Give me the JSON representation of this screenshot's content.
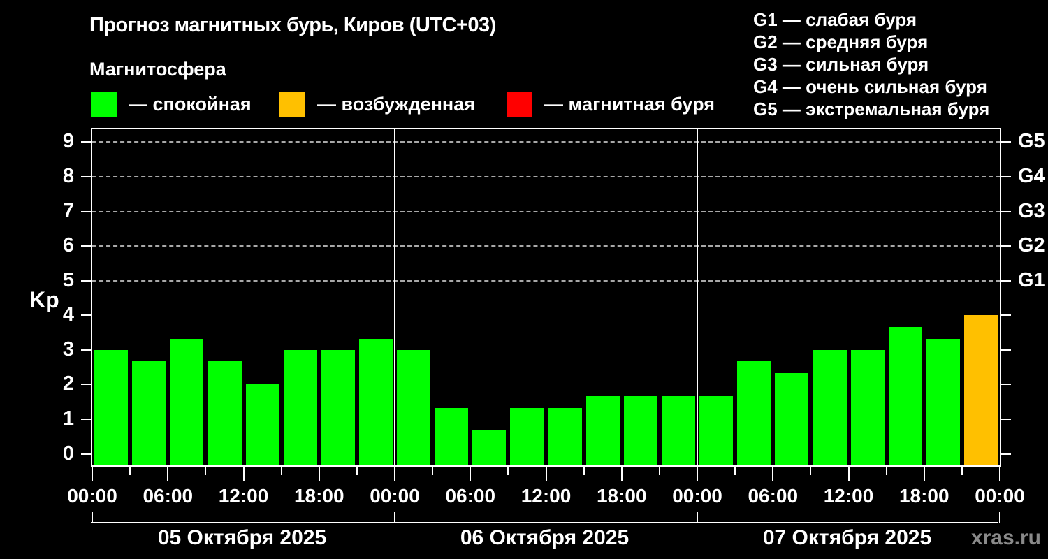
{
  "header": {
    "title": "Прогноз магнитных бурь, Киров (UTC+03)",
    "subtitle": "Магнитосфера"
  },
  "legend": {
    "items": [
      {
        "key": "quiet",
        "label": "— спокойная",
        "color": "#00ff00"
      },
      {
        "key": "excited",
        "label": "— возбужденная",
        "color": "#ffc000"
      },
      {
        "key": "storm",
        "label": "— магнитная буря",
        "color": "#ff0000"
      }
    ]
  },
  "g_legend": {
    "items": [
      {
        "text": "G1 — слабая буря"
      },
      {
        "text": "G2 — средняя буря"
      },
      {
        "text": "G3 — сильная буря"
      },
      {
        "text": "G4 — очень сильная буря"
      },
      {
        "text": "G5 — экстремальная буря"
      }
    ]
  },
  "chart_data": {
    "type": "bar",
    "title": "Прогноз магнитных бурь, Киров (UTC+03)",
    "subtitle": "Магнитосфера",
    "ylabel": "Kp",
    "ylim": [
      -0.33,
      9.37
    ],
    "y_ticks": [
      0,
      1,
      2,
      3,
      4,
      5,
      6,
      7,
      8,
      9
    ],
    "grid_levels": [
      5,
      6,
      7,
      8,
      9
    ],
    "grid_style": "dashed",
    "right_labels": [
      {
        "text": "G1",
        "kp": 5
      },
      {
        "text": "G2",
        "kp": 6
      },
      {
        "text": "G3",
        "kp": 7
      },
      {
        "text": "G4",
        "kp": 8
      },
      {
        "text": "G5",
        "kp": 9
      }
    ],
    "hours_total": 72,
    "bar_interval_hours": 3,
    "x_major_step_hours": 6,
    "x_minor_step_hours": 3,
    "x_tick_labels": [
      "00:00",
      "06:00",
      "12:00",
      "18:00",
      "00:00",
      "06:00",
      "12:00",
      "18:00",
      "00:00",
      "06:00",
      "12:00",
      "18:00",
      "00:00"
    ],
    "days": [
      {
        "date": "05 Октября 2025",
        "values": [
          3.0,
          2.67,
          3.33,
          2.67,
          2.0,
          3.0,
          3.0,
          3.33
        ]
      },
      {
        "date": "06 Октября 2025",
        "values": [
          3.0,
          1.33,
          0.67,
          1.33,
          1.33,
          1.67,
          1.67,
          1.67
        ]
      },
      {
        "date": "07 Октября 2025",
        "values": [
          1.67,
          2.67,
          2.33,
          3.0,
          3.0,
          3.67,
          3.33,
          4.0
        ]
      }
    ],
    "colors": {
      "quiet": "#00ff00",
      "excited": "#ffc000",
      "storm": "#ff0000"
    },
    "color_rule": "kp < 4 quiet (green), 4 <= kp < 5 excited (orange), kp >= 5 storm (red)",
    "legend_position": "top-left",
    "background": "#000000"
  },
  "footer": {
    "watermark": "xras.ru"
  }
}
